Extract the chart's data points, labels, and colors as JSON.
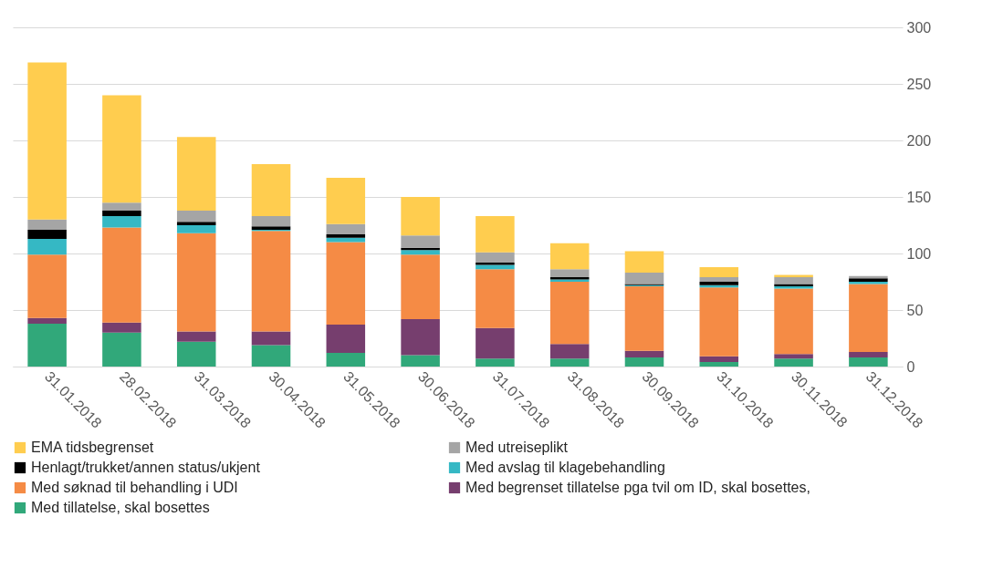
{
  "chart_data": {
    "type": "bar",
    "stacked": true,
    "legend": "bottom",
    "grid": "y",
    "categories": [
      "31.01.2018",
      "28.02.2018",
      "31.03.2018",
      "30.04.2018",
      "31.05.2018",
      "30.06.2018",
      "31.07.2018",
      "31.08.2018",
      "30.09.2018",
      "31.10.2018",
      "30.11.2018",
      "31.12.2018"
    ],
    "ylim": [
      0,
      300
    ],
    "yticks": [
      0,
      50,
      100,
      150,
      200,
      250,
      300
    ],
    "series": [
      {
        "name": "Med tillatelse, skal bosettes",
        "color": "#31a87a",
        "values": [
          38,
          30,
          22,
          19,
          12,
          10,
          7,
          7,
          8,
          4,
          7,
          8
        ]
      },
      {
        "name": "Med begrenset tillatelse pga tvil om ID, skal bosettes,",
        "color": "#763e6e",
        "values": [
          5,
          9,
          9,
          12,
          25,
          32,
          27,
          13,
          6,
          5,
          4,
          5
        ]
      },
      {
        "name": "Med søknad til behandling  i UDI",
        "color": "#f58b45",
        "values": [
          56,
          84,
          87,
          89,
          73,
          57,
          52,
          55,
          57,
          61,
          58,
          60
        ]
      },
      {
        "name": "Med avslag til klagebehandling",
        "color": "#35b8c4",
        "values": [
          14,
          10,
          7,
          1,
          4,
          4,
          4,
          2,
          1,
          2,
          2,
          2
        ]
      },
      {
        "name": "Henlagt/trukket/annen  status/ukjent",
        "color": "#000000",
        "values": [
          8,
          5,
          3,
          3,
          3,
          2,
          2,
          2,
          1,
          3,
          2,
          3
        ]
      },
      {
        "name": "Med utreiseplikt",
        "color": "#a5a5a5",
        "values": [
          9,
          7,
          10,
          9,
          9,
          11,
          9,
          7,
          10,
          4,
          6,
          2
        ]
      },
      {
        "name": "EMA tidsbegrenset",
        "color": "#ffcd4f",
        "values": [
          139,
          95,
          65,
          46,
          41,
          34,
          32,
          23,
          19,
          9,
          2,
          0
        ]
      }
    ]
  }
}
